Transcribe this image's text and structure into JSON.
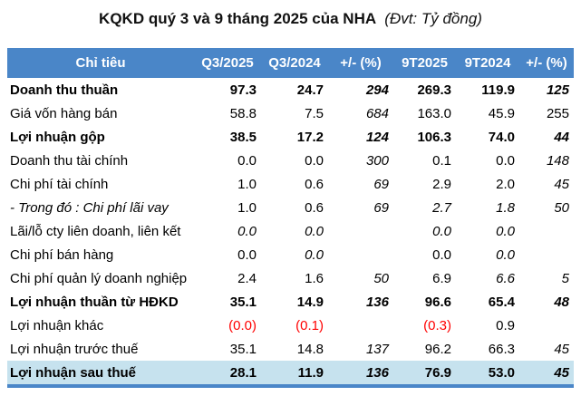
{
  "title": {
    "main": "KQKD quý 3 và 9 tháng 2025 của NHA",
    "unit": "(Đvt: Tỷ đồng)"
  },
  "colors": {
    "header_bg": "#4A86C8",
    "header_text": "#FFFFFF",
    "highlight_bg": "#C6E2EE",
    "negative": "#FF0000"
  },
  "chart_data": {
    "type": "table",
    "title": "KQKD quý 3 và 9 tháng 2025 của NHA (Đvt: Tỷ đồng)",
    "unit": "Tỷ đồng",
    "columns": [
      "Chỉ tiêu",
      "Q3/2025",
      "Q3/2024",
      "+/- (%)",
      "9T2025",
      "9T2024",
      "+/- (%)"
    ],
    "rows": [
      {
        "label": "Doanh thu thuần",
        "bold": true,
        "cells": [
          {
            "v": "97.3"
          },
          {
            "v": "24.7"
          },
          {
            "v": "294",
            "i": true
          },
          {
            "v": "269.3"
          },
          {
            "v": "119.9"
          },
          {
            "v": "125",
            "i": true
          }
        ]
      },
      {
        "label": "Giá vốn hàng bán",
        "cells": [
          {
            "v": "58.8"
          },
          {
            "v": "7.5"
          },
          {
            "v": "684",
            "i": true
          },
          {
            "v": "163.0"
          },
          {
            "v": "45.9"
          },
          {
            "v": "255"
          }
        ]
      },
      {
        "label": "Lợi nhuận gộp",
        "bold": true,
        "cells": [
          {
            "v": "38.5"
          },
          {
            "v": "17.2"
          },
          {
            "v": "124",
            "i": true
          },
          {
            "v": "106.3"
          },
          {
            "v": "74.0"
          },
          {
            "v": "44",
            "i": true
          }
        ]
      },
      {
        "label": "Doanh thu tài chính",
        "cells": [
          {
            "v": "0.0"
          },
          {
            "v": "0.0"
          },
          {
            "v": "300",
            "i": true
          },
          {
            "v": "0.1"
          },
          {
            "v": "0.0"
          },
          {
            "v": "148",
            "i": true
          }
        ]
      },
      {
        "label": "Chi phí tài chính",
        "cells": [
          {
            "v": "1.0"
          },
          {
            "v": "0.6"
          },
          {
            "v": "69",
            "i": true
          },
          {
            "v": "2.9"
          },
          {
            "v": "2.0"
          },
          {
            "v": "45",
            "i": true
          }
        ]
      },
      {
        "label": "- Trong đó : Chi phí lãi vay",
        "label_italic": true,
        "cells": [
          {
            "v": "1.0"
          },
          {
            "v": "0.6"
          },
          {
            "v": "69",
            "i": true
          },
          {
            "v": "2.7",
            "i": true
          },
          {
            "v": "1.8",
            "i": true
          },
          {
            "v": "50",
            "i": true
          }
        ]
      },
      {
        "label": "Lãi/lỗ cty liên doanh, liên kết",
        "cells": [
          {
            "v": "0.0",
            "i": true
          },
          {
            "v": "0.0",
            "i": true
          },
          {
            "v": ""
          },
          {
            "v": "0.0",
            "i": true
          },
          {
            "v": "0.0",
            "i": true
          },
          {
            "v": ""
          }
        ]
      },
      {
        "label": "Chi phí bán hàng",
        "cells": [
          {
            "v": "0.0"
          },
          {
            "v": "0.0",
            "i": true
          },
          {
            "v": ""
          },
          {
            "v": "0.0"
          },
          {
            "v": "0.0",
            "i": true
          },
          {
            "v": ""
          }
        ]
      },
      {
        "label": "Chi phí quản lý doanh nghiệp",
        "cells": [
          {
            "v": "2.4"
          },
          {
            "v": "1.6"
          },
          {
            "v": "50",
            "i": true
          },
          {
            "v": "6.9"
          },
          {
            "v": "6.6",
            "i": true
          },
          {
            "v": "5",
            "i": true
          }
        ]
      },
      {
        "label": "Lợi nhuận thuần từ HĐKD",
        "bold": true,
        "cells": [
          {
            "v": "35.1"
          },
          {
            "v": "14.9"
          },
          {
            "v": "136",
            "i": true
          },
          {
            "v": "96.6"
          },
          {
            "v": "65.4"
          },
          {
            "v": "48",
            "i": true
          }
        ]
      },
      {
        "label": "Lợi nhuận khác",
        "cells": [
          {
            "v": "(0.0)",
            "r": true
          },
          {
            "v": "(0.1)",
            "r": true
          },
          {
            "v": ""
          },
          {
            "v": "(0.3)",
            "r": true
          },
          {
            "v": "0.9"
          },
          {
            "v": ""
          }
        ]
      },
      {
        "label": "Lợi nhuận trước thuế",
        "cells": [
          {
            "v": "35.1"
          },
          {
            "v": "14.8"
          },
          {
            "v": "137",
            "i": true
          },
          {
            "v": "96.2"
          },
          {
            "v": "66.3"
          },
          {
            "v": "45",
            "i": true
          }
        ]
      },
      {
        "label": "Lợi nhuận sau thuế",
        "bold": true,
        "highlight": true,
        "cells": [
          {
            "v": "28.1"
          },
          {
            "v": "11.9"
          },
          {
            "v": "136",
            "i": true
          },
          {
            "v": "76.9"
          },
          {
            "v": "53.0"
          },
          {
            "v": "45",
            "i": true
          }
        ]
      }
    ]
  }
}
